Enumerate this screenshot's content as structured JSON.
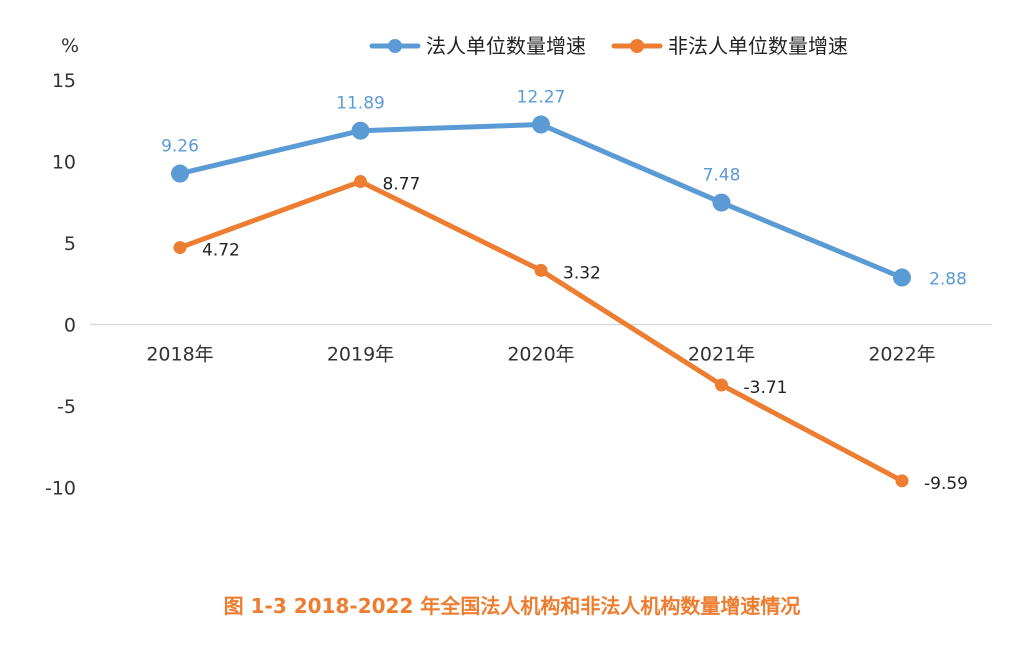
{
  "chart_data": {
    "type": "line",
    "unit_label": "%",
    "categories": [
      "2018年",
      "2019年",
      "2020年",
      "2021年",
      "2022年"
    ],
    "ylim": [
      -12,
      15
    ],
    "yticks": [
      15,
      10,
      5,
      0,
      -5,
      -10
    ],
    "grid": false,
    "legend": "top-right",
    "series": [
      {
        "name": "法人单位数量增速",
        "color": "#5B9BD5",
        "values": [
          9.26,
          11.89,
          12.27,
          7.48,
          2.88
        ],
        "labels": [
          "9.26",
          "11.89",
          "12.27",
          "7.48",
          "2.88"
        ]
      },
      {
        "name": "非法人单位数量增速",
        "color": "#ED7D31",
        "values": [
          4.72,
          8.77,
          3.32,
          -3.71,
          -9.59
        ],
        "labels": [
          "4.72",
          "8.77",
          "3.32",
          "-3.71",
          "-9.59"
        ]
      }
    ],
    "caption": "图 1-3    2018-2022 年全国法人机构和非法人机构数量增速情况",
    "caption_color": "#ED7D31",
    "axis_line_color": "#D9D9D9"
  }
}
